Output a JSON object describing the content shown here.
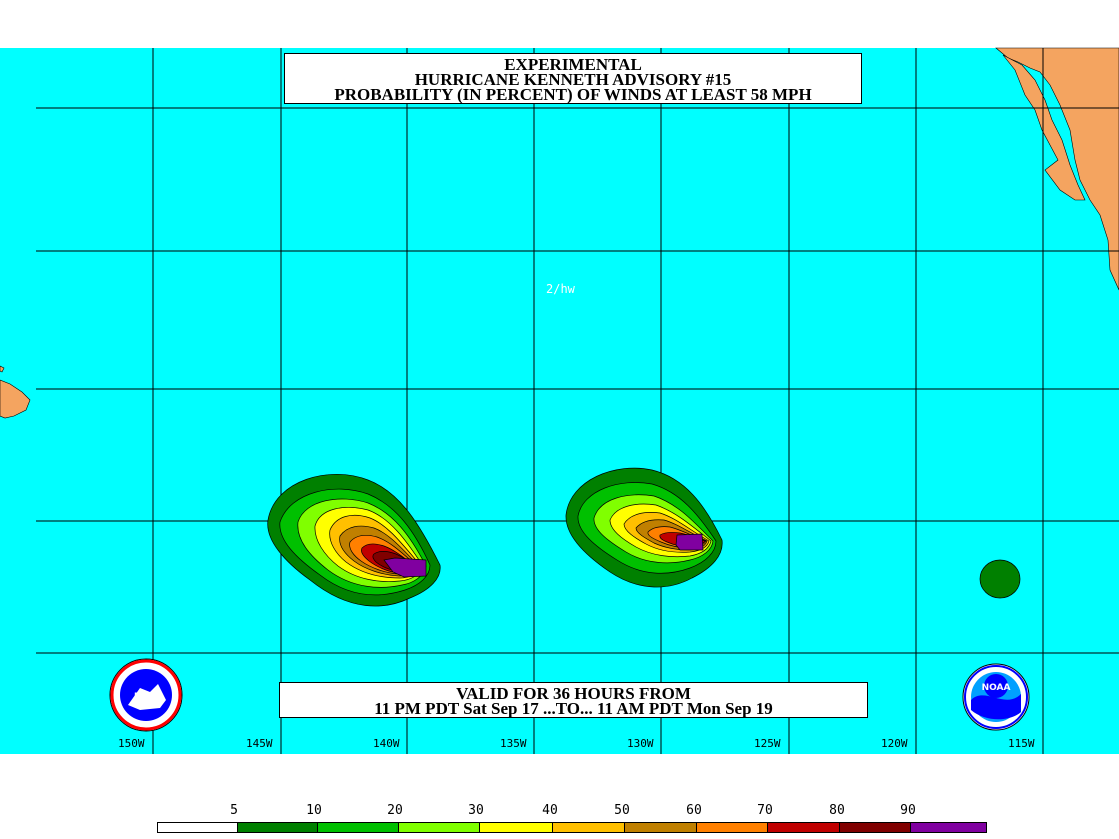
{
  "title": {
    "line1": "EXPERIMENTAL",
    "line2": "HURRICANE KENNETH ADVISORY #15",
    "line3": "PROBABILITY (IN PERCENT) OF WINDS AT LEAST 58 MPH"
  },
  "valid": {
    "line1": "VALID FOR 36 HOURS FROM",
    "line2": "11 PM PDT Sat Sep 17 ...TO... 11 AM PDT Mon Sep 19"
  },
  "watermark": "2/hw",
  "longitudes": [
    "150W",
    "145W",
    "140W",
    "135W",
    "130W",
    "125W",
    "120W",
    "115W"
  ],
  "colors": {
    "ocean": "#00ffff",
    "land": "#f4a460",
    "grid": "#000000"
  },
  "legend": {
    "labels": [
      "5",
      "10",
      "20",
      "30",
      "40",
      "50",
      "60",
      "70",
      "80",
      "90"
    ],
    "colors": [
      "#ffffff",
      "#008000",
      "#00c000",
      "#80ff00",
      "#ffff00",
      "#ffc000",
      "#c08000",
      "#ff8000",
      "#c00000",
      "#800000",
      "#8000a0"
    ]
  },
  "logos": {
    "left": "NWS",
    "right": "NOAA"
  }
}
